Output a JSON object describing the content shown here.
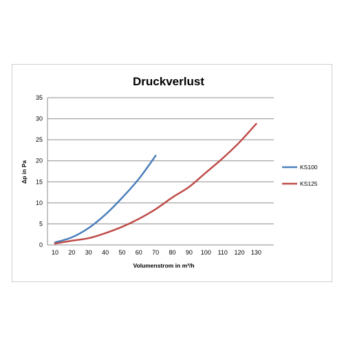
{
  "chart_data": {
    "type": "line",
    "title": "Druckverlust",
    "xlabel": "Volumenstrom in m³/h",
    "ylabel": "Δp in Pa",
    "xlim": [
      10,
      130
    ],
    "ylim": [
      0,
      35
    ],
    "x_ticks": [
      "10",
      "20",
      "30",
      "40",
      "50",
      "60",
      "70",
      "80",
      "90",
      "100",
      "110",
      "120",
      "130"
    ],
    "y_ticks": [
      "0",
      "5",
      "10",
      "15",
      "20",
      "25",
      "30",
      "35"
    ],
    "grid": true,
    "legend_position": "right",
    "series": [
      {
        "name": "KS100",
        "color": "#4a7ebb",
        "x": [
          10,
          20,
          30,
          40,
          50,
          60,
          70
        ],
        "y": [
          0.6,
          1.8,
          4.0,
          7.2,
          11.2,
          15.7,
          21.2
        ]
      },
      {
        "name": "KS125",
        "color": "#be4b48",
        "x": [
          10,
          20,
          30,
          40,
          50,
          60,
          70,
          80,
          90,
          100,
          110,
          120,
          130
        ],
        "y": [
          0.3,
          1.0,
          1.6,
          2.8,
          4.3,
          6.2,
          8.5,
          11.3,
          13.8,
          17.2,
          20.6,
          24.4,
          28.8
        ]
      }
    ]
  }
}
